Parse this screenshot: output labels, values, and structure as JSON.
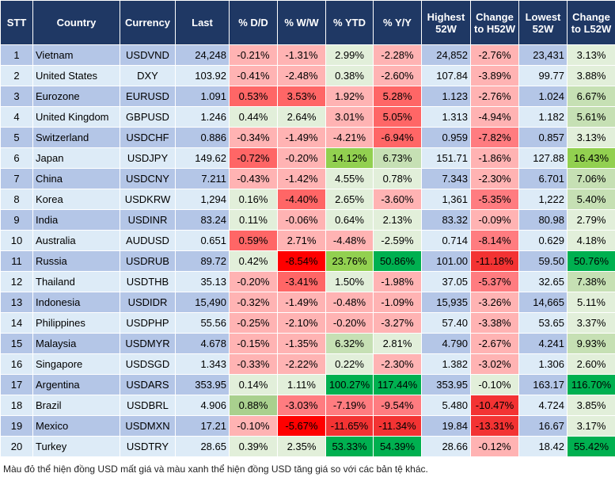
{
  "headers": [
    "STT",
    "Country",
    "Currency",
    "Last",
    "% D/D",
    "% W/W",
    "% YTD",
    "% Y/Y",
    "Highest 52W",
    "Change to H52W",
    "Lowest 52W",
    "Change to L52W"
  ],
  "colors": {
    "header_bg": "#1f3864",
    "row_odd": "#b4c6e7",
    "row_even": "#ddebf7",
    "lr": "#ffb3b3",
    "r": "#ff6666",
    "mr": "#ff7c80",
    "red": "#f33333",
    "dr": "#ff0000",
    "lg": "#e2efda",
    "g": "#c6e0b4",
    "g2": "#a9d08e",
    "mg": "#92d050",
    "dg": "#00b050"
  },
  "rows": [
    {
      "stt": "1",
      "country": "Vietnam",
      "currency": "USDVND",
      "last": "24,248",
      "dd": "-0.21%",
      "ww": "-1.31%",
      "ytd": "2.99%",
      "yy": "-2.28%",
      "high": "24,852",
      "h52": "-2.76%",
      "low": "23,431",
      "l52": "3.13%",
      "c": [
        "lr",
        "lr",
        "lg",
        "lr",
        "lr",
        "lg"
      ]
    },
    {
      "stt": "2",
      "country": "United States",
      "currency": "DXY",
      "last": "103.92",
      "dd": "-0.41%",
      "ww": "-2.48%",
      "ytd": "0.38%",
      "yy": "-2.60%",
      "high": "107.84",
      "h52": "-3.89%",
      "low": "99.77",
      "l52": "3.88%",
      "c": [
        "lr",
        "lr",
        "lg",
        "lr",
        "lr",
        "lg"
      ]
    },
    {
      "stt": "3",
      "country": "Eurozone",
      "currency": "EURUSD",
      "last": "1.091",
      "dd": "0.53%",
      "ww": "3.53%",
      "ytd": "1.92%",
      "yy": "5.28%",
      "high": "1.123",
      "h52": "-2.76%",
      "low": "1.024",
      "l52": "6.67%",
      "c": [
        "r",
        "r",
        "lr",
        "r",
        "lr",
        "g"
      ]
    },
    {
      "stt": "4",
      "country": "United Kingdom",
      "currency": "GBPUSD",
      "last": "1.246",
      "dd": "0.44%",
      "ww": "2.64%",
      "ytd": "3.01%",
      "yy": "5.05%",
      "high": "1.313",
      "h52": "-4.94%",
      "low": "1.182",
      "l52": "5.61%",
      "c": [
        "lg",
        "lg",
        "lr",
        "r",
        "lr",
        "g"
      ]
    },
    {
      "stt": "5",
      "country": "Switzerland",
      "currency": "USDCHF",
      "last": "0.886",
      "dd": "-0.34%",
      "ww": "-1.49%",
      "ytd": "-4.21%",
      "yy": "-6.94%",
      "high": "0.959",
      "h52": "-7.82%",
      "low": "0.857",
      "l52": "3.13%",
      "c": [
        "lr",
        "lr",
        "lr",
        "r",
        "mr",
        "lg"
      ]
    },
    {
      "stt": "6",
      "country": "Japan",
      "currency": "USDJPY",
      "last": "149.62",
      "dd": "-0.72%",
      "ww": "-0.20%",
      "ytd": "14.12%",
      "yy": "6.73%",
      "high": "151.71",
      "h52": "-1.86%",
      "low": "127.88",
      "l52": "16.43%",
      "c": [
        "r",
        "lr",
        "mg",
        "g",
        "lr",
        "mg"
      ]
    },
    {
      "stt": "7",
      "country": "China",
      "currency": "USDCNY",
      "last": "7.211",
      "dd": "-0.43%",
      "ww": "-1.42%",
      "ytd": "4.55%",
      "yy": "0.78%",
      "high": "7.343",
      "h52": "-2.30%",
      "low": "6.701",
      "l52": "7.06%",
      "c": [
        "lr",
        "lr",
        "lg",
        "lg",
        "lr",
        "g"
      ]
    },
    {
      "stt": "8",
      "country": "Korea",
      "currency": "USDKRW",
      "last": "1,294",
      "dd": "0.16%",
      "ww": "-4.40%",
      "ytd": "2.65%",
      "yy": "-3.60%",
      "high": "1,361",
      "h52": "-5.35%",
      "low": "1,222",
      "l52": "5.40%",
      "c": [
        "lg",
        "r",
        "lg",
        "lr",
        "mr",
        "g"
      ]
    },
    {
      "stt": "9",
      "country": "India",
      "currency": "USDINR",
      "last": "83.24",
      "dd": "0.11%",
      "ww": "-0.06%",
      "ytd": "0.64%",
      "yy": "2.13%",
      "high": "83.32",
      "h52": "-0.09%",
      "low": "80.98",
      "l52": "2.79%",
      "c": [
        "lg",
        "lr",
        "lg",
        "lg",
        "lr",
        "lg"
      ]
    },
    {
      "stt": "10",
      "country": "Australia",
      "currency": "AUDUSD",
      "last": "0.651",
      "dd": "0.59%",
      "ww": "2.71%",
      "ytd": "-4.48%",
      "yy": "-2.59%",
      "high": "0.714",
      "h52": "-8.14%",
      "low": "0.629",
      "l52": "4.18%",
      "c": [
        "r",
        "lr",
        "lr",
        "lg",
        "mr",
        "lg"
      ]
    },
    {
      "stt": "11",
      "country": "Russia",
      "currency": "USDRUB",
      "last": "89.72",
      "dd": "0.42%",
      "ww": "-8.54%",
      "ytd": "23.76%",
      "yy": "50.86%",
      "high": "101.00",
      "h52": "-11.18%",
      "low": "59.50",
      "l52": "50.76%",
      "c": [
        "lg",
        "dr",
        "mg",
        "dg",
        "red",
        "dg"
      ]
    },
    {
      "stt": "12",
      "country": "Thailand",
      "currency": "USDTHB",
      "last": "35.13",
      "dd": "-0.20%",
      "ww": "-3.41%",
      "ytd": "1.50%",
      "yy": "-1.98%",
      "high": "37.05",
      "h52": "-5.37%",
      "low": "32.65",
      "l52": "7.38%",
      "c": [
        "lr",
        "r",
        "lg",
        "lr",
        "mr",
        "g"
      ]
    },
    {
      "stt": "13",
      "country": "Indonesia",
      "currency": "USDIDR",
      "last": "15,490",
      "dd": "-0.32%",
      "ww": "-1.49%",
      "ytd": "-0.48%",
      "yy": "-1.09%",
      "high": "15,935",
      "h52": "-3.26%",
      "low": "14,665",
      "l52": "5.11%",
      "c": [
        "lr",
        "lr",
        "lr",
        "lr",
        "lr",
        "lg"
      ]
    },
    {
      "stt": "14",
      "country": "Philippines",
      "currency": "USDPHP",
      "last": "55.56",
      "dd": "-0.25%",
      "ww": "-2.10%",
      "ytd": "-0.20%",
      "yy": "-3.27%",
      "high": "57.40",
      "h52": "-3.38%",
      "low": "53.65",
      "l52": "3.37%",
      "c": [
        "lr",
        "lr",
        "lr",
        "lr",
        "lr",
        "lg"
      ]
    },
    {
      "stt": "15",
      "country": "Malaysia",
      "currency": "USDMYR",
      "last": "4.678",
      "dd": "-0.15%",
      "ww": "-1.35%",
      "ytd": "6.32%",
      "yy": "2.81%",
      "high": "4.790",
      "h52": "-2.67%",
      "low": "4.241",
      "l52": "9.93%",
      "c": [
        "lr",
        "lr",
        "g",
        "lg",
        "lr",
        "g"
      ]
    },
    {
      "stt": "16",
      "country": "Singapore",
      "currency": "USDSGD",
      "last": "1.343",
      "dd": "-0.33%",
      "ww": "-2.22%",
      "ytd": "0.22%",
      "yy": "-2.30%",
      "high": "1.382",
      "h52": "-3.02%",
      "low": "1.306",
      "l52": "2.60%",
      "c": [
        "lr",
        "lr",
        "lg",
        "lr",
        "lr",
        "lg"
      ]
    },
    {
      "stt": "17",
      "country": "Argentina",
      "currency": "USDARS",
      "last": "353.95",
      "dd": "0.14%",
      "ww": "1.11%",
      "ytd": "100.27%",
      "yy": "117.44%",
      "high": "353.95",
      "h52": "-0.10%",
      "low": "163.17",
      "l52": "116.70%",
      "c": [
        "lg",
        "lg",
        "dg",
        "dg",
        "lg",
        "dg"
      ]
    },
    {
      "stt": "18",
      "country": "Brazil",
      "currency": "USDBRL",
      "last": "4.906",
      "dd": "0.88%",
      "ww": "-3.03%",
      "ytd": "-7.19%",
      "yy": "-9.54%",
      "high": "5.480",
      "h52": "-10.47%",
      "low": "4.724",
      "l52": "3.85%",
      "c": [
        "g2",
        "mr",
        "mr",
        "mr",
        "red",
        "lg"
      ]
    },
    {
      "stt": "19",
      "country": "Mexico",
      "currency": "USDMXN",
      "last": "17.21",
      "dd": "-0.10%",
      "ww": "-5.67%",
      "ytd": "-11.65%",
      "yy": "-11.34%",
      "high": "19.84",
      "h52": "-13.31%",
      "low": "16.67",
      "l52": "3.17%",
      "c": [
        "lr",
        "dr",
        "red",
        "red",
        "red",
        "lg"
      ]
    },
    {
      "stt": "20",
      "country": "Turkey",
      "currency": "USDTRY",
      "last": "28.65",
      "dd": "0.39%",
      "ww": "2.35%",
      "ytd": "53.33%",
      "yy": "54.39%",
      "high": "28.66",
      "h52": "-0.12%",
      "low": "18.42",
      "l52": "55.42%",
      "c": [
        "lg",
        "lg",
        "dg",
        "dg",
        "lr",
        "dg"
      ]
    }
  ],
  "footnote": "Màu đỏ thể hiện đồng USD mất giá và màu xanh thể hiện đồng USD tăng giá so với các bản tệ khác."
}
